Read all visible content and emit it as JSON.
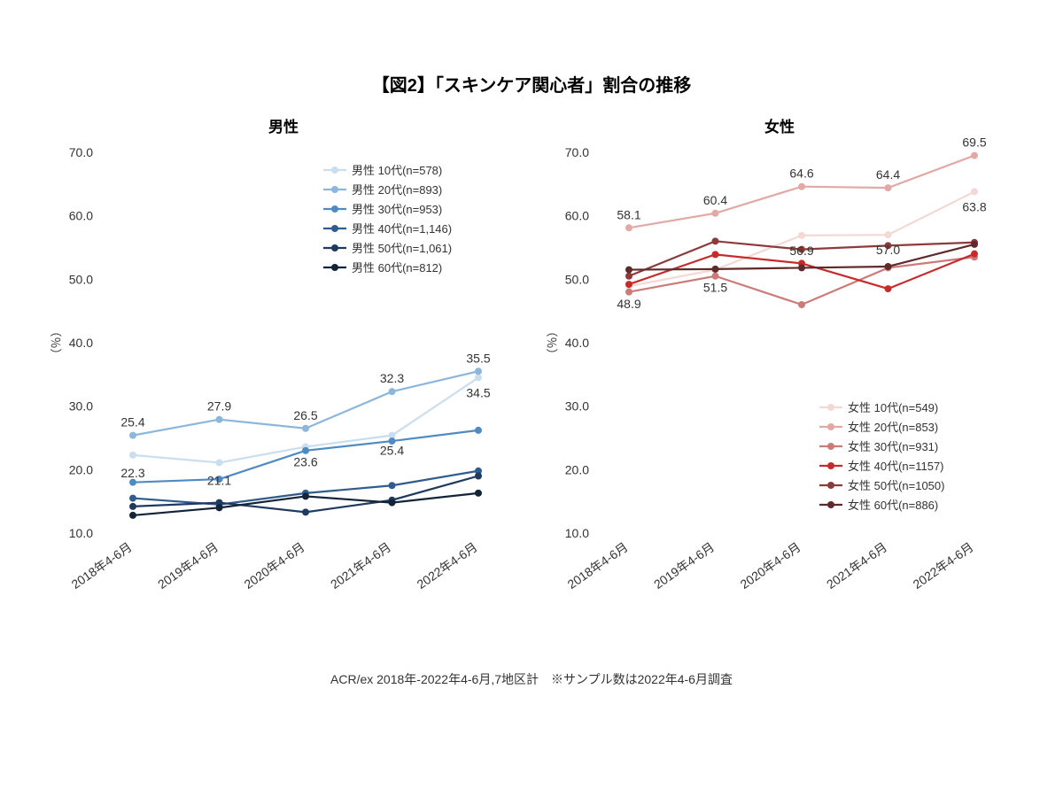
{
  "title": "【図2】「スキンケア関心者」割合の推移",
  "footer": "ACR/ex 2018年-2022年4-6月,7地区計　※サンプル数は2022年4-6月調査",
  "y_axis_label": "（％）",
  "ylim": [
    10,
    70
  ],
  "ytick_step": 10,
  "x_labels": [
    "2018年4-6月",
    "2019年4-6月",
    "2020年4-6月",
    "2021年4-6月",
    "2022年4-6月"
  ],
  "tick_fontsize": 14,
  "label_fontsize": 13,
  "data_label_fontsize": 14,
  "legend_fontsize": 13,
  "marker_radius": 4,
  "line_width": 2.2,
  "background_color": "#ffffff",
  "text_color": "#333333",
  "panels": {
    "male": {
      "title": "男性",
      "legend_pos": "top-right",
      "series": [
        {
          "label": "男性 10代(n=578)",
          "color": "#c9deef",
          "values": [
            22.3,
            21.1,
            23.6,
            25.4,
            34.5
          ]
        },
        {
          "label": "男性 20代(n=893)",
          "color": "#8cb7dc",
          "values": [
            25.4,
            27.9,
            26.5,
            32.3,
            35.5
          ]
        },
        {
          "label": "男性 30代(n=953)",
          "color": "#4e8bc4",
          "values": [
            18.0,
            18.5,
            23.0,
            24.5,
            26.2
          ]
        },
        {
          "label": "男性 40代(n=1,146)",
          "color": "#2f5b8f",
          "values": [
            15.5,
            14.5,
            16.3,
            17.5,
            19.8
          ]
        },
        {
          "label": "男性 50代(n=1,061)",
          "color": "#1e3a5f",
          "values": [
            14.2,
            14.8,
            13.3,
            15.2,
            19.0
          ]
        },
        {
          "label": "男性 60代(n=812)",
          "color": "#132338",
          "values": [
            12.8,
            14.0,
            15.8,
            14.8,
            16.3
          ]
        }
      ],
      "data_labels": [
        {
          "x": 0,
          "y": 22.3,
          "text": "22.3",
          "dy": 25
        },
        {
          "x": 0,
          "y": 25.4,
          "text": "25.4",
          "dy": -10
        },
        {
          "x": 1,
          "y": 21.1,
          "text": "21.1",
          "dy": 25
        },
        {
          "x": 1,
          "y": 27.9,
          "text": "27.9",
          "dy": -10
        },
        {
          "x": 2,
          "y": 23.6,
          "text": "23.6",
          "dy": 22
        },
        {
          "x": 2,
          "y": 26.5,
          "text": "26.5",
          "dy": -10
        },
        {
          "x": 3,
          "y": 25.4,
          "text": "25.4",
          "dy": 22
        },
        {
          "x": 3,
          "y": 32.3,
          "text": "32.3",
          "dy": -10
        },
        {
          "x": 4,
          "y": 34.5,
          "text": "34.5",
          "dy": 22
        },
        {
          "x": 4,
          "y": 35.5,
          "text": "35.5",
          "dy": -10
        }
      ]
    },
    "female": {
      "title": "女性",
      "legend_pos": "bottom-right",
      "series": [
        {
          "label": "女性 10代(n=549)",
          "color": "#f2d9d6",
          "values": [
            48.9,
            51.5,
            56.9,
            57.0,
            63.8
          ]
        },
        {
          "label": "女性 20代(n=853)",
          "color": "#e2a9a5",
          "values": [
            58.1,
            60.4,
            64.6,
            64.4,
            69.5
          ]
        },
        {
          "label": "女性 30代(n=931)",
          "color": "#cc7b79",
          "values": [
            48.0,
            50.5,
            46.0,
            51.8,
            53.5
          ]
        },
        {
          "label": "女性 40代(n=1157)",
          "color": "#c82a2a",
          "values": [
            49.2,
            53.9,
            52.5,
            48.5,
            54.0
          ]
        },
        {
          "label": "女性 50代(n=1050)",
          "color": "#8e3a3a",
          "values": [
            50.5,
            56.0,
            54.7,
            55.3,
            55.8
          ]
        },
        {
          "label": "女性 60代(n=886)",
          "color": "#5e2a2a",
          "values": [
            51.5,
            51.6,
            51.8,
            52.0,
            55.5
          ]
        }
      ],
      "data_labels": [
        {
          "x": 0,
          "y": 48.9,
          "text": "48.9",
          "dy": 25
        },
        {
          "x": 0,
          "y": 58.1,
          "text": "58.1",
          "dy": -10
        },
        {
          "x": 1,
          "y": 51.5,
          "text": "51.5",
          "dy": 25
        },
        {
          "x": 1,
          "y": 60.4,
          "text": "60.4",
          "dy": -10
        },
        {
          "x": 2,
          "y": 56.9,
          "text": "56.9",
          "dy": 22
        },
        {
          "x": 2,
          "y": 64.6,
          "text": "64.6",
          "dy": -10
        },
        {
          "x": 3,
          "y": 57.0,
          "text": "57.0",
          "dy": 22
        },
        {
          "x": 3,
          "y": 64.4,
          "text": "64.4",
          "dy": -10
        },
        {
          "x": 4,
          "y": 63.8,
          "text": "63.8",
          "dy": 22
        },
        {
          "x": 4,
          "y": 69.5,
          "text": "69.5",
          "dy": -10
        }
      ]
    }
  }
}
